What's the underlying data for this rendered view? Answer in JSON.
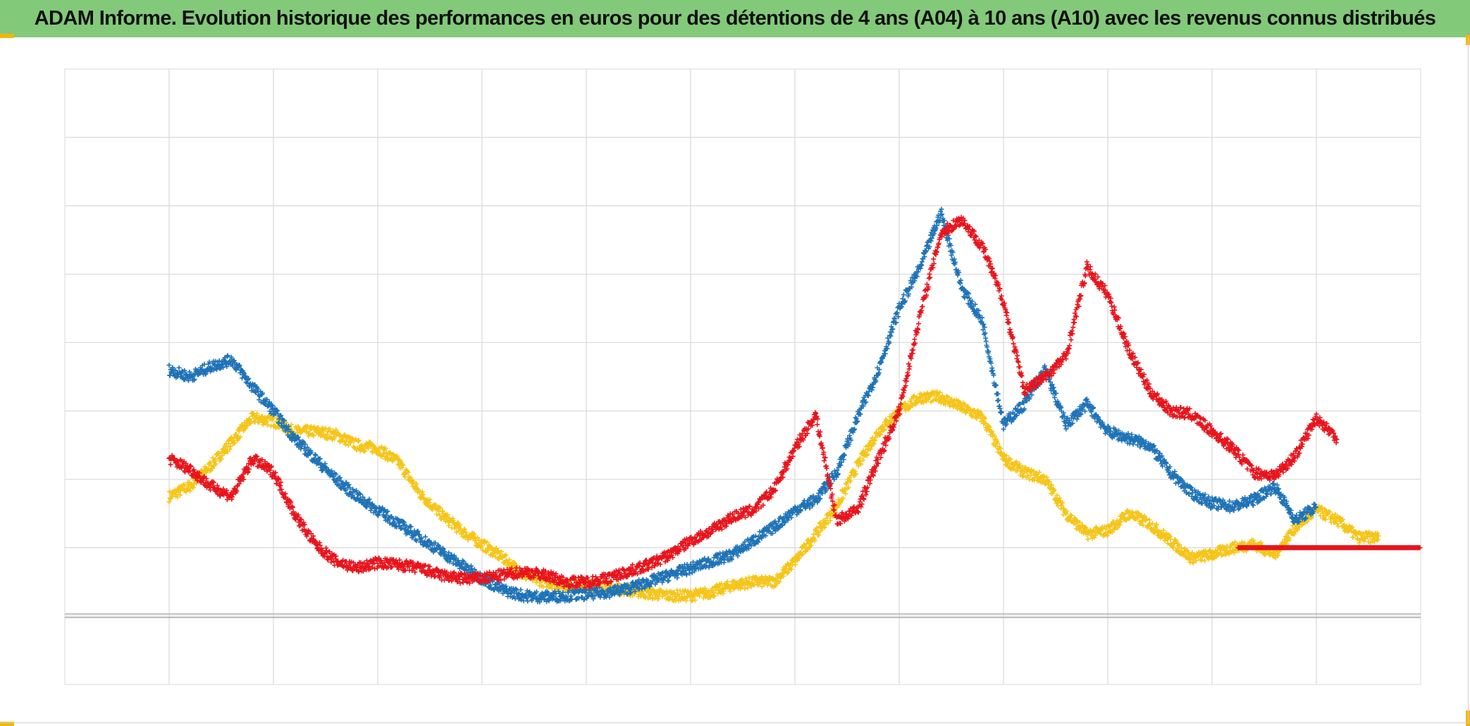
{
  "title": "ADAM Informe. Evolution historique des performances en euros pour des détentions de 4 ans (A04) à 10 ans (A10) avec les revenus connus distribués",
  "chart_data": {
    "type": "scatter",
    "marker": "+",
    "title": "ADAM Informe. Evolution historique des performances en euros pour des détentions de 4 ans (A04) à 10 ans (A10) avec les revenus connus distribués",
    "xlabel": "",
    "ylabel": "",
    "x_range": [
      0,
      13
    ],
    "y_range": [
      -1,
      8
    ],
    "zero_line": 0,
    "grid": true,
    "x_gridlines": 13,
    "y_gridlines": 9,
    "legend": "none",
    "series": [
      {
        "color": "#f5c518",
        "points": [
          [
            1.0,
            1.75
          ],
          [
            1.2,
            1.9
          ],
          [
            1.4,
            2.2
          ],
          [
            1.6,
            2.55
          ],
          [
            1.8,
            2.9
          ],
          [
            2.0,
            2.85
          ],
          [
            2.2,
            2.7
          ],
          [
            2.4,
            2.7
          ],
          [
            2.6,
            2.65
          ],
          [
            2.8,
            2.5
          ],
          [
            3.0,
            2.45
          ],
          [
            3.2,
            2.25
          ],
          [
            3.4,
            1.8
          ],
          [
            3.6,
            1.5
          ],
          [
            3.8,
            1.25
          ],
          [
            4.0,
            1.05
          ],
          [
            4.2,
            0.85
          ],
          [
            4.4,
            0.6
          ],
          [
            4.6,
            0.5
          ],
          [
            4.8,
            0.45
          ],
          [
            5.0,
            0.45
          ],
          [
            5.2,
            0.42
          ],
          [
            5.4,
            0.38
          ],
          [
            5.6,
            0.33
          ],
          [
            5.8,
            0.3
          ],
          [
            6.0,
            0.3
          ],
          [
            6.2,
            0.35
          ],
          [
            6.4,
            0.45
          ],
          [
            6.6,
            0.5
          ],
          [
            6.8,
            0.5
          ],
          [
            7.0,
            0.8
          ],
          [
            7.2,
            1.2
          ],
          [
            7.4,
            1.6
          ],
          [
            7.6,
            2.2
          ],
          [
            7.8,
            2.7
          ],
          [
            8.0,
            3.0
          ],
          [
            8.2,
            3.2
          ],
          [
            8.4,
            3.2
          ],
          [
            8.6,
            3.05
          ],
          [
            8.8,
            2.9
          ],
          [
            9.0,
            2.3
          ],
          [
            9.2,
            2.1
          ],
          [
            9.4,
            2.0
          ],
          [
            9.6,
            1.5
          ],
          [
            9.8,
            1.2
          ],
          [
            10.0,
            1.25
          ],
          [
            10.2,
            1.5
          ],
          [
            10.4,
            1.35
          ],
          [
            10.6,
            1.1
          ],
          [
            10.8,
            0.85
          ],
          [
            11.0,
            0.9
          ],
          [
            11.2,
            1.0
          ],
          [
            11.4,
            1.05
          ],
          [
            11.6,
            0.9
          ],
          [
            11.8,
            1.3
          ],
          [
            12.0,
            1.55
          ],
          [
            12.2,
            1.4
          ],
          [
            12.4,
            1.15
          ],
          [
            12.6,
            1.15
          ]
        ]
      },
      {
        "color": "#1f73b7",
        "points": [
          [
            1.0,
            3.6
          ],
          [
            1.2,
            3.5
          ],
          [
            1.4,
            3.65
          ],
          [
            1.6,
            3.75
          ],
          [
            1.8,
            3.35
          ],
          [
            2.0,
            3.0
          ],
          [
            2.2,
            2.6
          ],
          [
            2.4,
            2.3
          ],
          [
            2.6,
            2.0
          ],
          [
            2.8,
            1.75
          ],
          [
            3.0,
            1.55
          ],
          [
            3.2,
            1.35
          ],
          [
            3.4,
            1.15
          ],
          [
            3.6,
            0.95
          ],
          [
            3.8,
            0.75
          ],
          [
            4.0,
            0.55
          ],
          [
            4.2,
            0.38
          ],
          [
            4.4,
            0.3
          ],
          [
            4.6,
            0.28
          ],
          [
            4.8,
            0.3
          ],
          [
            5.0,
            0.32
          ],
          [
            5.2,
            0.35
          ],
          [
            5.4,
            0.4
          ],
          [
            5.6,
            0.5
          ],
          [
            5.8,
            0.6
          ],
          [
            6.0,
            0.7
          ],
          [
            6.2,
            0.8
          ],
          [
            6.4,
            0.9
          ],
          [
            6.6,
            1.1
          ],
          [
            6.8,
            1.3
          ],
          [
            7.0,
            1.55
          ],
          [
            7.2,
            1.7
          ],
          [
            7.4,
            2.1
          ],
          [
            7.6,
            2.9
          ],
          [
            7.8,
            3.6
          ],
          [
            8.0,
            4.5
          ],
          [
            8.2,
            5.1
          ],
          [
            8.4,
            5.9
          ],
          [
            8.6,
            4.8
          ],
          [
            8.8,
            4.3
          ],
          [
            9.0,
            2.8
          ],
          [
            9.2,
            3.1
          ],
          [
            9.4,
            3.6
          ],
          [
            9.6,
            2.8
          ],
          [
            9.8,
            3.1
          ],
          [
            10.0,
            2.7
          ],
          [
            10.2,
            2.6
          ],
          [
            10.4,
            2.5
          ],
          [
            10.6,
            2.1
          ],
          [
            10.8,
            1.8
          ],
          [
            11.0,
            1.65
          ],
          [
            11.2,
            1.6
          ],
          [
            11.4,
            1.7
          ],
          [
            11.6,
            1.9
          ],
          [
            11.8,
            1.4
          ],
          [
            12.0,
            1.6
          ]
        ]
      },
      {
        "color": "#e8141c",
        "points": [
          [
            1.0,
            2.3
          ],
          [
            1.2,
            2.15
          ],
          [
            1.4,
            1.9
          ],
          [
            1.6,
            1.75
          ],
          [
            1.8,
            2.3
          ],
          [
            2.0,
            2.1
          ],
          [
            2.2,
            1.5
          ],
          [
            2.4,
            1.05
          ],
          [
            2.6,
            0.8
          ],
          [
            2.8,
            0.7
          ],
          [
            3.0,
            0.78
          ],
          [
            3.2,
            0.75
          ],
          [
            3.4,
            0.7
          ],
          [
            3.6,
            0.6
          ],
          [
            3.8,
            0.55
          ],
          [
            4.0,
            0.55
          ],
          [
            4.2,
            0.6
          ],
          [
            4.4,
            0.65
          ],
          [
            4.6,
            0.6
          ],
          [
            4.8,
            0.5
          ],
          [
            5.0,
            0.5
          ],
          [
            5.2,
            0.55
          ],
          [
            5.4,
            0.65
          ],
          [
            5.6,
            0.75
          ],
          [
            5.8,
            0.9
          ],
          [
            6.0,
            1.1
          ],
          [
            6.2,
            1.25
          ],
          [
            6.4,
            1.45
          ],
          [
            6.6,
            1.55
          ],
          [
            6.8,
            1.85
          ],
          [
            7.0,
            2.45
          ],
          [
            7.2,
            2.95
          ],
          [
            7.4,
            1.4
          ],
          [
            7.6,
            1.55
          ],
          [
            7.8,
            2.3
          ],
          [
            8.0,
            3.0
          ],
          [
            8.2,
            4.4
          ],
          [
            8.4,
            5.6
          ],
          [
            8.6,
            5.8
          ],
          [
            8.8,
            5.4
          ],
          [
            9.0,
            4.6
          ],
          [
            9.2,
            3.3
          ],
          [
            9.4,
            3.5
          ],
          [
            9.6,
            3.8
          ],
          [
            9.8,
            5.1
          ],
          [
            10.0,
            4.7
          ],
          [
            10.2,
            3.9
          ],
          [
            10.4,
            3.3
          ],
          [
            10.6,
            3.0
          ],
          [
            10.8,
            2.95
          ],
          [
            11.0,
            2.7
          ],
          [
            11.2,
            2.45
          ],
          [
            11.4,
            2.1
          ],
          [
            11.6,
            2.05
          ],
          [
            11.8,
            2.35
          ],
          [
            12.0,
            2.9
          ],
          [
            12.2,
            2.6
          ]
        ]
      },
      {
        "color": "#e8141c",
        "points": [
          [
            11.25,
            1.0
          ],
          [
            13.0,
            1.0
          ]
        ]
      }
    ]
  }
}
